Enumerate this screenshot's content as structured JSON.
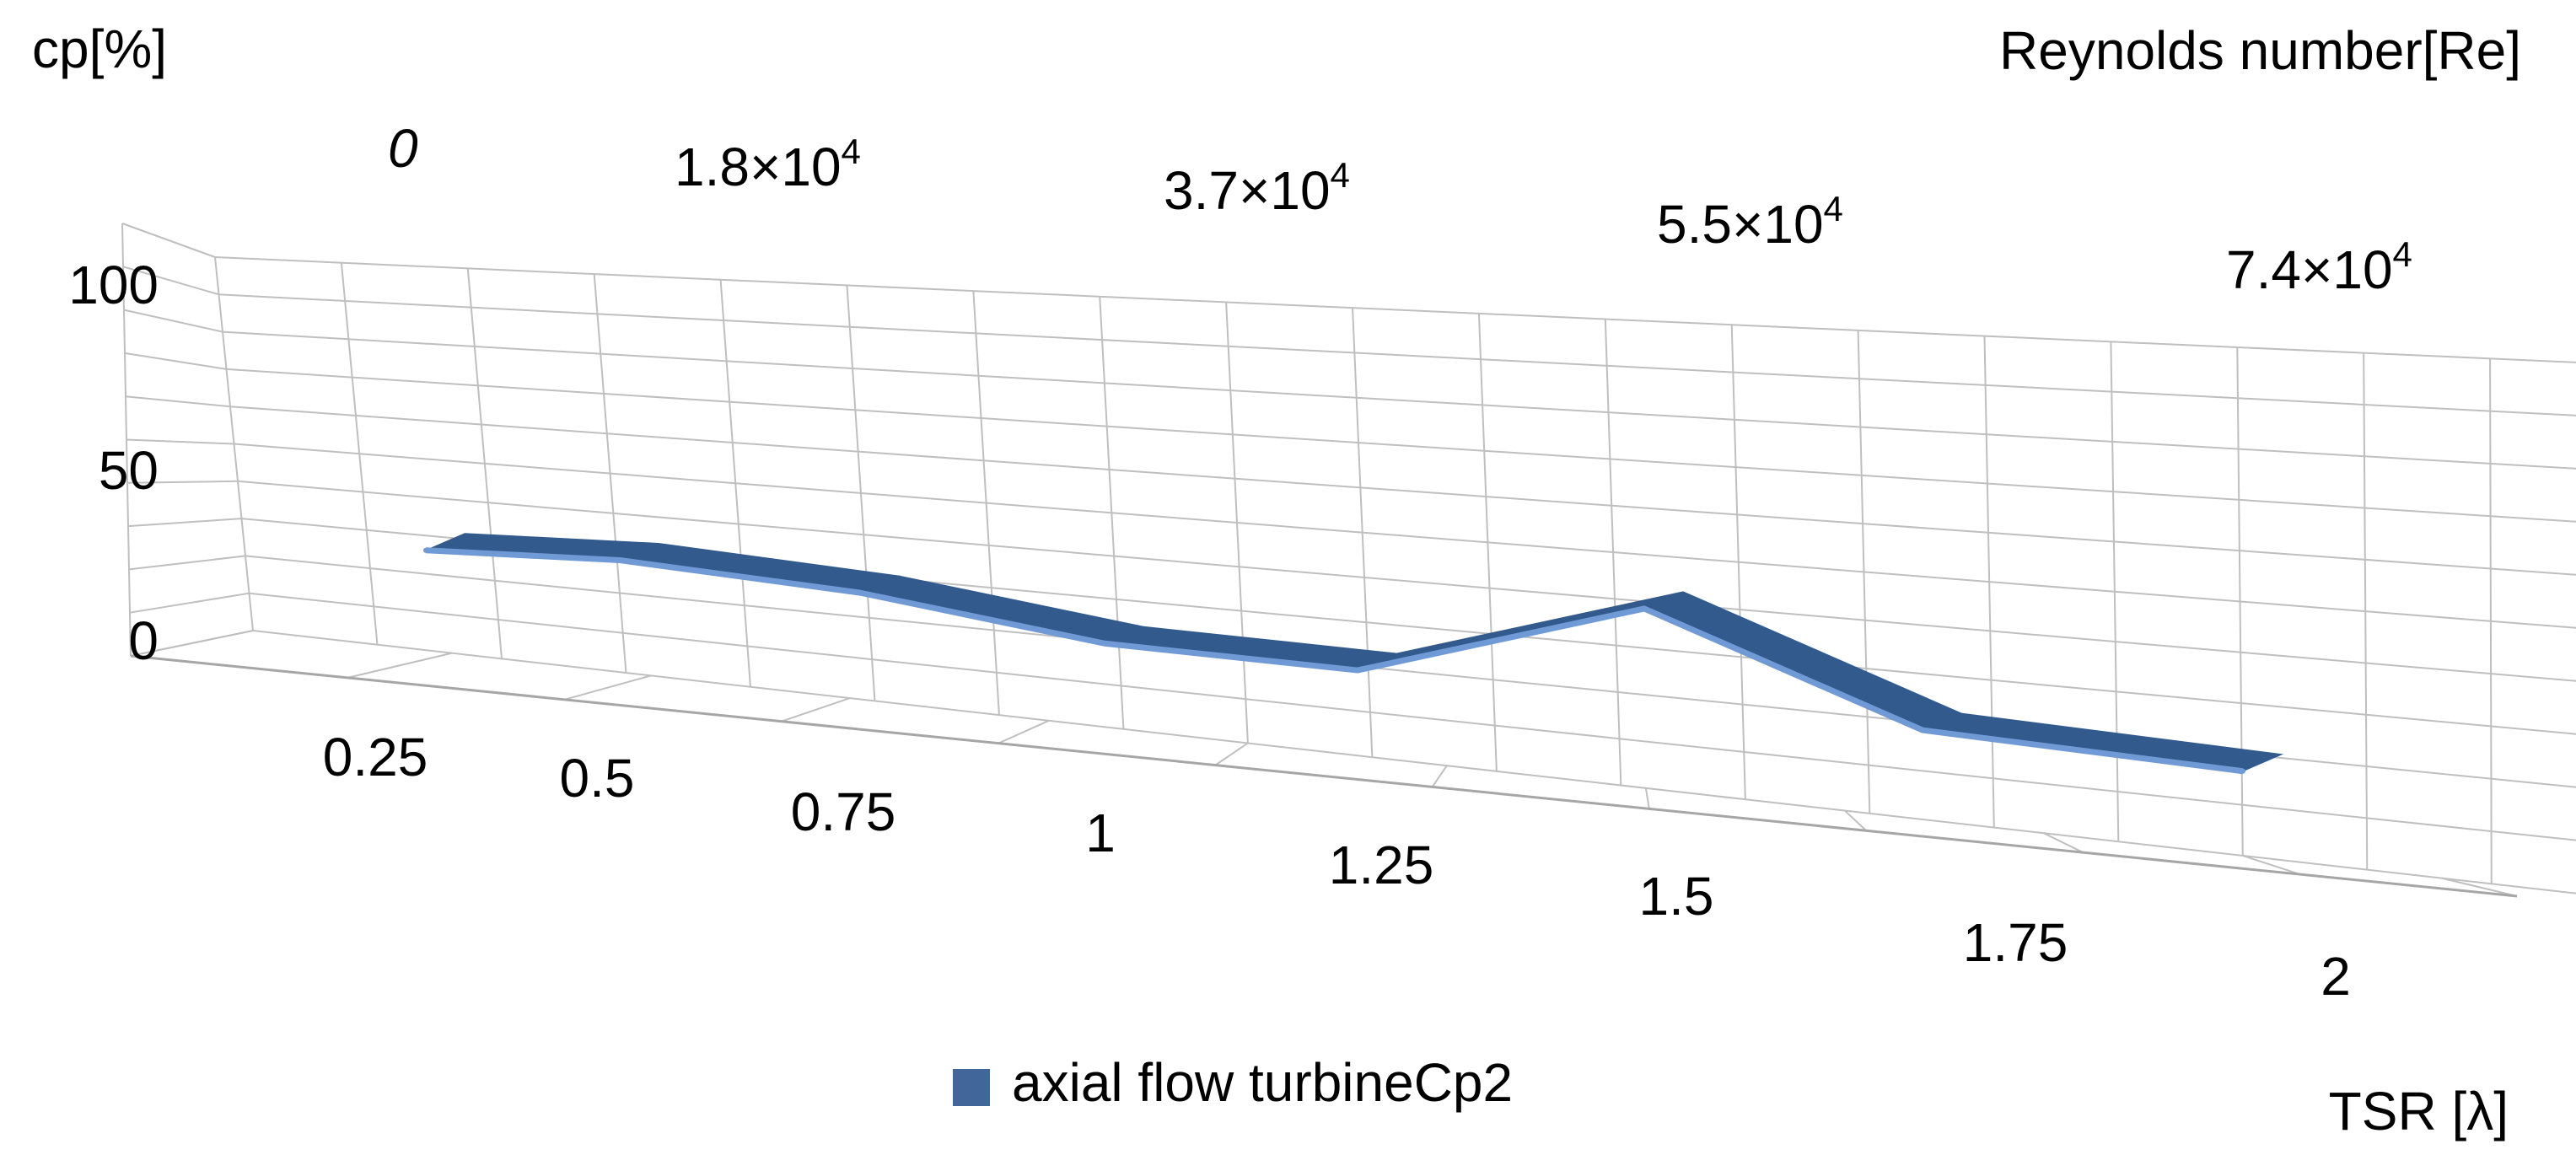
{
  "chart_data": {
    "type": "line",
    "subtype": "3d-line",
    "title": "",
    "ylabel": "cp[%]",
    "xlabel": "TSR [λ]",
    "depth_label": "Reynolds number[Re]",
    "ylim": [
      0,
      100
    ],
    "y_ticks": [
      "0",
      "50",
      "100"
    ],
    "x_ticks": [
      "0.25",
      "0.5",
      "0.75",
      "1",
      "1.25",
      "1.5",
      "1.75",
      "2"
    ],
    "x": [
      0.25,
      0.5,
      0.75,
      1,
      1.25,
      1.5,
      1.75,
      2
    ],
    "top_axis": [
      {
        "mantissa": "0",
        "exp": ""
      },
      {
        "mantissa": "1.8×10",
        "exp": "4"
      },
      {
        "mantissa": "3.7×10",
        "exp": "4"
      },
      {
        "mantissa": "5.5×10",
        "exp": "4"
      },
      {
        "mantissa": "7.4×10",
        "exp": "4"
      }
    ],
    "grid": true,
    "legend_position": "bottom",
    "series": [
      {
        "name": "axial flow turbineCp2",
        "values": [
          9,
          12,
          10,
          3,
          3,
          29,
          3,
          1
        ],
        "color": "#41679a",
        "top_color": "#335a8c",
        "edge_color": "#6f9ad6"
      }
    ]
  }
}
